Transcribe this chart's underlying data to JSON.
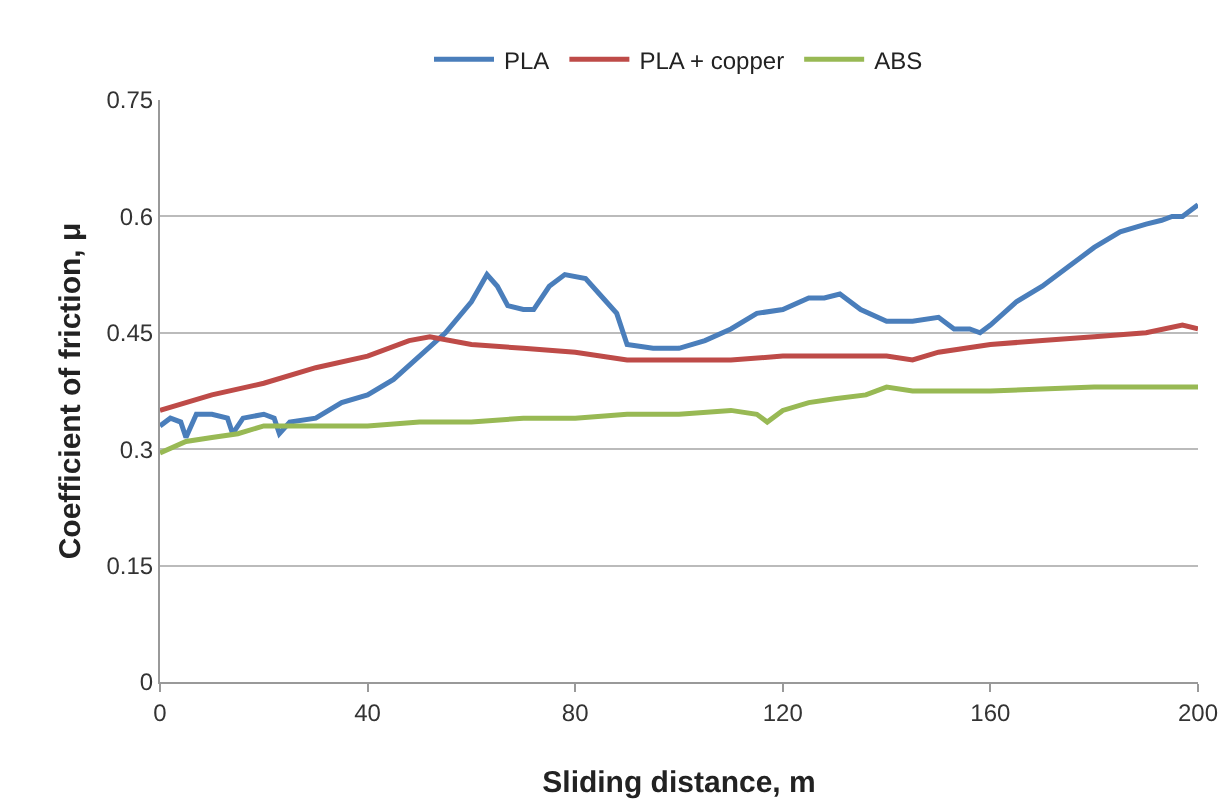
{
  "chart_data": {
    "type": "line",
    "xlabel": "Sliding distance, m",
    "ylabel": "Coefficient of friction, μ",
    "xlim": [
      0,
      200
    ],
    "xticks": [
      0,
      40,
      80,
      120,
      160,
      200
    ],
    "ylim": [
      0,
      0.75
    ],
    "yticks": [
      0,
      0.15,
      0.3,
      0.45,
      0.6,
      0.75
    ],
    "grid": "y",
    "legend": "top",
    "marker": "none",
    "line_style": "solid",
    "series": [
      {
        "name": "PLA",
        "color": "#4a7ebb",
        "x": [
          0,
          2,
          4,
          5,
          7,
          10,
          13,
          14,
          16,
          20,
          22,
          23,
          25,
          30,
          35,
          40,
          45,
          50,
          55,
          60,
          63,
          65,
          67,
          70,
          72,
          75,
          78,
          82,
          86,
          88,
          90,
          95,
          100,
          105,
          110,
          115,
          120,
          125,
          128,
          131,
          135,
          140,
          145,
          150,
          153,
          156,
          158,
          160,
          165,
          170,
          175,
          180,
          185,
          190,
          193,
          195,
          197,
          200
        ],
        "values": [
          0.33,
          0.34,
          0.335,
          0.315,
          0.345,
          0.345,
          0.34,
          0.32,
          0.34,
          0.345,
          0.34,
          0.32,
          0.335,
          0.34,
          0.36,
          0.37,
          0.39,
          0.42,
          0.45,
          0.49,
          0.525,
          0.51,
          0.485,
          0.48,
          0.48,
          0.51,
          0.525,
          0.52,
          0.49,
          0.475,
          0.435,
          0.43,
          0.43,
          0.44,
          0.455,
          0.475,
          0.48,
          0.495,
          0.495,
          0.5,
          0.48,
          0.465,
          0.465,
          0.47,
          0.455,
          0.455,
          0.45,
          0.46,
          0.49,
          0.51,
          0.535,
          0.56,
          0.58,
          0.59,
          0.595,
          0.6,
          0.6,
          0.615
        ]
      },
      {
        "name": "PLA + copper",
        "color": "#be4b48",
        "x": [
          0,
          10,
          20,
          30,
          40,
          48,
          52,
          60,
          70,
          80,
          90,
          100,
          110,
          120,
          130,
          140,
          145,
          150,
          160,
          170,
          180,
          190,
          197,
          200
        ],
        "values": [
          0.35,
          0.37,
          0.385,
          0.405,
          0.42,
          0.44,
          0.445,
          0.435,
          0.43,
          0.425,
          0.415,
          0.415,
          0.415,
          0.42,
          0.42,
          0.42,
          0.415,
          0.425,
          0.435,
          0.44,
          0.445,
          0.45,
          0.46,
          0.455
        ]
      },
      {
        "name": "ABS",
        "color": "#98b954",
        "x": [
          0,
          5,
          10,
          15,
          20,
          30,
          40,
          50,
          60,
          70,
          80,
          90,
          100,
          110,
          115,
          117,
          120,
          125,
          130,
          136,
          140,
          145,
          160,
          180,
          190,
          200
        ],
        "values": [
          0.295,
          0.31,
          0.315,
          0.32,
          0.33,
          0.33,
          0.33,
          0.335,
          0.335,
          0.34,
          0.34,
          0.345,
          0.345,
          0.35,
          0.345,
          0.335,
          0.35,
          0.36,
          0.365,
          0.37,
          0.38,
          0.375,
          0.375,
          0.38,
          0.38,
          0.38
        ]
      }
    ]
  }
}
